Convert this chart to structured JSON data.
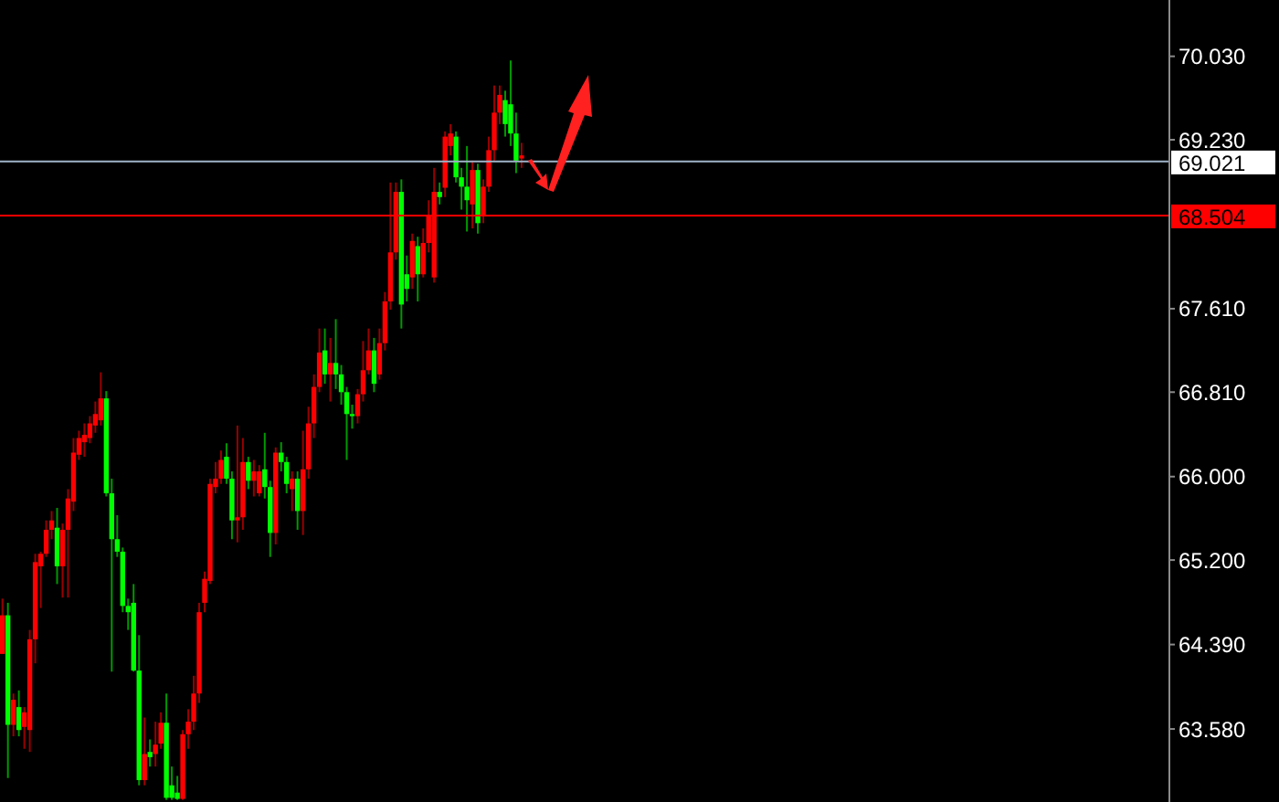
{
  "chart_data": {
    "type": "candlestick",
    "categories": [
      null,
      null,
      null,
      null,
      null,
      null,
      null,
      null,
      null,
      null,
      null,
      null,
      null,
      null,
      null,
      null,
      null,
      null,
      null,
      null,
      null,
      null,
      null,
      null,
      null,
      null,
      null,
      null,
      null,
      null,
      null,
      null,
      null,
      null,
      null,
      null,
      null,
      null,
      null,
      null,
      null,
      null,
      null,
      null,
      null,
      null,
      null,
      null,
      null,
      null,
      null,
      null,
      null,
      null,
      null,
      null,
      null,
      null,
      null,
      null,
      null,
      null,
      null,
      null,
      null,
      null,
      null,
      null,
      null,
      null,
      null,
      null,
      null,
      null,
      null,
      null,
      null,
      null,
      null,
      null,
      null,
      null,
      null,
      null,
      null,
      null,
      null,
      null,
      null,
      null,
      null,
      null,
      null,
      null,
      null,
      null,
      null,
      null,
      null,
      null,
      null,
      null,
      null,
      null,
      null,
      null,
      null,
      null,
      null,
      null,
      null,
      null,
      null,
      null,
      null,
      null,
      null,
      null,
      null,
      null,
      null,
      null,
      null,
      null,
      null,
      null,
      null,
      null,
      null,
      null,
      null,
      null,
      null,
      null,
      null,
      null,
      null,
      null,
      null,
      null,
      null,
      null,
      null,
      null,
      null,
      null,
      null,
      null,
      null,
      null,
      null,
      null,
      null,
      null,
      null,
      null,
      null,
      null,
      null,
      null,
      null,
      null,
      null,
      null,
      null,
      null,
      null,
      null,
      null,
      null,
      null,
      null,
      null,
      null,
      null,
      null,
      null,
      null,
      null,
      null,
      null,
      null,
      null,
      null,
      null,
      null,
      null,
      null,
      null,
      null,
      null,
      null,
      null,
      null,
      null,
      null,
      null,
      null,
      null,
      null,
      null,
      null,
      null,
      null,
      null,
      null,
      null,
      null,
      null,
      null,
      null,
      null,
      null,
      null
    ],
    "ohlc": [
      [
        64.3,
        64.83,
        64.3,
        64.67
      ],
      [
        64.67,
        64.79,
        63.11,
        63.62
      ],
      [
        63.62,
        63.92,
        63.51,
        63.86
      ],
      [
        63.79,
        63.95,
        63.51,
        63.57
      ],
      [
        63.6,
        63.79,
        63.39,
        63.74
      ],
      [
        63.57,
        64.53,
        63.36,
        64.44
      ],
      [
        64.44,
        65.26,
        64.21,
        65.18
      ],
      [
        65.14,
        65.28,
        64.74,
        65.26
      ],
      [
        65.26,
        65.58,
        65.23,
        65.49
      ],
      [
        65.49,
        65.67,
        65.4,
        65.58
      ],
      [
        65.51,
        65.7,
        64.97,
        65.14
      ],
      [
        65.14,
        65.55,
        64.84,
        65.49
      ],
      [
        65.49,
        65.88,
        64.84,
        65.79
      ],
      [
        65.76,
        66.37,
        65.67,
        66.23
      ],
      [
        66.21,
        66.44,
        66.16,
        66.37
      ],
      [
        66.33,
        66.51,
        66.19,
        66.4
      ],
      [
        66.37,
        66.58,
        66.32,
        66.51
      ],
      [
        66.49,
        66.72,
        66.42,
        66.6
      ],
      [
        66.54,
        67.0,
        66.49,
        66.75
      ],
      [
        66.75,
        66.82,
        65.81,
        65.84
      ],
      [
        65.84,
        65.98,
        64.13,
        65.4
      ],
      [
        65.4,
        65.63,
        65.23,
        65.28
      ],
      [
        65.28,
        65.32,
        64.7,
        64.76
      ],
      [
        64.76,
        64.83,
        64.53,
        64.7
      ],
      [
        64.79,
        64.97,
        64.13,
        64.14
      ],
      [
        64.14,
        64.48,
        63.04,
        63.09
      ],
      [
        63.09,
        63.69,
        63.04,
        63.34
      ],
      [
        63.36,
        63.48,
        63.22,
        63.31
      ],
      [
        63.34,
        63.65,
        63.22,
        63.43
      ],
      [
        63.44,
        63.74,
        63.39,
        63.64
      ],
      [
        63.64,
        63.92,
        62.9,
        62.92
      ],
      [
        63.04,
        63.22,
        62.9,
        62.92
      ],
      [
        62.97,
        63.13,
        62.9,
        62.91
      ],
      [
        62.91,
        63.57,
        62.9,
        63.53
      ],
      [
        63.53,
        63.77,
        63.39,
        63.65
      ],
      [
        63.65,
        64.09,
        63.57,
        63.92
      ],
      [
        63.92,
        64.79,
        63.83,
        64.7
      ],
      [
        64.79,
        65.09,
        64.7,
        65.02
      ],
      [
        65.0,
        65.98,
        64.97,
        65.93
      ],
      [
        65.9,
        66.14,
        65.84,
        65.98
      ],
      [
        65.98,
        66.25,
        65.93,
        66.16
      ],
      [
        66.19,
        66.32,
        65.93,
        65.98
      ],
      [
        65.98,
        66.05,
        65.4,
        65.58
      ],
      [
        65.58,
        66.49,
        65.37,
        65.61
      ],
      [
        65.61,
        66.37,
        65.49,
        66.14
      ],
      [
        66.14,
        66.19,
        65.88,
        65.96
      ],
      [
        65.96,
        66.16,
        65.81,
        66.05
      ],
      [
        65.84,
        66.11,
        65.81,
        66.05
      ],
      [
        66.07,
        66.42,
        65.79,
        65.9
      ],
      [
        65.9,
        65.96,
        65.23,
        65.46
      ],
      [
        65.46,
        66.28,
        65.35,
        66.23
      ],
      [
        66.23,
        66.33,
        66.05,
        66.14
      ],
      [
        66.14,
        66.19,
        65.84,
        65.93
      ],
      [
        65.88,
        66.05,
        65.67,
        65.98
      ],
      [
        65.98,
        66.05,
        65.49,
        65.67
      ],
      [
        65.67,
        66.44,
        65.44,
        66.07
      ],
      [
        66.07,
        66.67,
        65.98,
        66.51
      ],
      [
        66.51,
        66.98,
        66.37,
        66.86
      ],
      [
        66.86,
        67.42,
        66.81,
        67.19
      ],
      [
        67.21,
        67.42,
        66.89,
        66.98
      ],
      [
        66.98,
        67.33,
        66.72,
        67.09
      ],
      [
        67.09,
        67.51,
        66.84,
        66.98
      ],
      [
        66.98,
        67.07,
        66.69,
        66.81
      ],
      [
        66.81,
        66.86,
        66.16,
        66.6
      ],
      [
        66.6,
        66.69,
        66.46,
        66.58
      ],
      [
        66.58,
        66.84,
        66.51,
        66.79
      ],
      [
        66.79,
        67.3,
        66.72,
        67.02
      ],
      [
        67.02,
        67.42,
        66.98,
        67.21
      ],
      [
        67.21,
        67.33,
        66.81,
        66.89
      ],
      [
        66.98,
        67.42,
        66.93,
        67.28
      ],
      [
        67.28,
        67.77,
        67.21,
        67.68
      ],
      [
        67.68,
        68.82,
        67.6,
        68.15
      ],
      [
        68.15,
        68.82,
        68.08,
        68.73
      ],
      [
        68.73,
        68.85,
        67.42,
        67.65
      ],
      [
        67.94,
        68.12,
        67.68,
        67.8
      ],
      [
        67.91,
        68.33,
        67.8,
        68.26
      ],
      [
        68.21,
        68.3,
        67.68,
        67.94
      ],
      [
        67.94,
        68.38,
        67.91,
        68.24
      ],
      [
        68.24,
        68.65,
        68.15,
        68.5
      ],
      [
        67.91,
        68.96,
        67.86,
        68.73
      ],
      [
        68.73,
        68.82,
        68.61,
        68.68
      ],
      [
        68.77,
        69.31,
        68.68,
        69.26
      ],
      [
        69.17,
        69.38,
        69.08,
        69.29
      ],
      [
        69.26,
        69.31,
        68.82,
        68.87
      ],
      [
        68.87,
        68.96,
        68.56,
        68.78
      ],
      [
        68.78,
        69.17,
        68.35,
        68.65
      ],
      [
        68.61,
        69.03,
        68.38,
        68.94
      ],
      [
        68.94,
        69.0,
        68.33,
        68.43
      ],
      [
        68.5,
        68.85,
        68.43,
        68.78
      ],
      [
        68.78,
        69.26,
        68.73,
        69.13
      ],
      [
        69.13,
        69.75,
        69.03,
        69.49
      ],
      [
        69.49,
        69.75,
        69.38,
        69.66
      ],
      [
        69.61,
        69.7,
        69.26,
        69.38
      ],
      [
        69.57,
        69.99,
        69.17,
        69.29
      ],
      [
        69.29,
        69.49,
        68.91,
        69.03
      ],
      [
        69.05,
        69.2,
        68.96,
        69.08
      ],
      null,
      null,
      null,
      null,
      null,
      null,
      null,
      null,
      null,
      null,
      null,
      null,
      null,
      null,
      null,
      null,
      null,
      null,
      null,
      null,
      null,
      null,
      null,
      null,
      null,
      null,
      null,
      null,
      null,
      null,
      null,
      null,
      null,
      null,
      null,
      null,
      null,
      null,
      null,
      null,
      null,
      null,
      null,
      null,
      null,
      null,
      null,
      null,
      null,
      null,
      null,
      null,
      null,
      null,
      null,
      null,
      null,
      null,
      null,
      null,
      null,
      null,
      null,
      null,
      null,
      null,
      null,
      null,
      null,
      null,
      null,
      null,
      null,
      null,
      null,
      null,
      null,
      null,
      null,
      null,
      null,
      null,
      null,
      null,
      null,
      null,
      null,
      null,
      null,
      null,
      null,
      null,
      null,
      null,
      null,
      null,
      null,
      null,
      null,
      null,
      null,
      null,
      null,
      null,
      null,
      null,
      null,
      null,
      null,
      null,
      null,
      null,
      null,
      null,
      null,
      null,
      null,
      null
    ],
    "ylim": [
      62.88,
      70.57
    ],
    "yticks": [
      {
        "value": 70.03,
        "label": "70.030"
      },
      {
        "value": 69.23,
        "label": "69.230"
      },
      {
        "value": 67.61,
        "label": "67.610"
      },
      {
        "value": 66.81,
        "label": "66.810"
      },
      {
        "value": 66.0,
        "label": "66.000"
      },
      {
        "value": 65.2,
        "label": "65.200"
      },
      {
        "value": 64.39,
        "label": "64.390"
      },
      {
        "value": 63.58,
        "label": "63.580"
      }
    ],
    "ref_lines": [
      {
        "axis": "y",
        "value": 69.021,
        "label": "69.021",
        "color": "#9fb3c8"
      },
      {
        "axis": "y",
        "value": 68.504,
        "label": "68.504",
        "color": "#ff0000"
      }
    ],
    "tick_labels": "y",
    "grid": false
  }
}
